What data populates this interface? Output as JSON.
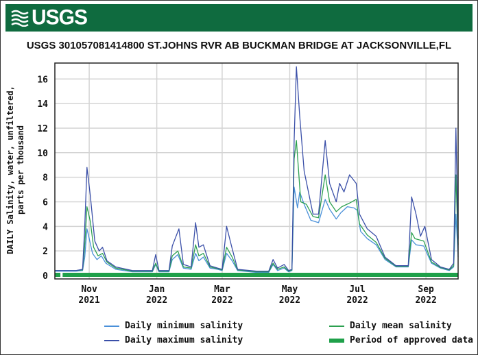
{
  "header": {
    "logo_text": "USGS",
    "banner_color": "#0f6b3f"
  },
  "chart_data": {
    "type": "line",
    "title": "USGS 301057081414800 ST.JOHNS RVR AB BUCKMAN BRIDGE AT JACKSONVILLE,FL",
    "ylabel_line1": "DAILY Salinity, water, unfiltered,",
    "ylabel_line2": "parts per thousand",
    "xlabel": "",
    "ylim": [
      0,
      17
    ],
    "yticks": [
      "0",
      "2",
      "4",
      "6",
      "8",
      "10",
      "12",
      "14",
      "16"
    ],
    "xticks": [
      {
        "month": "Nov",
        "year": "2021"
      },
      {
        "month": "Jan",
        "year": "2022"
      },
      {
        "month": "Mar",
        "year": "2022"
      },
      {
        "month": "May",
        "year": "2022"
      },
      {
        "month": "Jul",
        "year": "2022"
      },
      {
        "month": "Sep",
        "year": "2022"
      }
    ],
    "x_range": [
      "2021-10-01",
      "2022-09-30"
    ],
    "grid": true,
    "legend_position": "bottom",
    "series": [
      {
        "name": "Daily minimum salinity",
        "color": "#4a90d9",
        "points": [
          [
            "2021-10-01",
            0.35
          ],
          [
            "2021-10-20",
            0.35
          ],
          [
            "2021-10-26",
            0.4
          ],
          [
            "2021-10-28",
            1.5
          ],
          [
            "2021-10-30",
            3.8
          ],
          [
            "2021-11-01",
            3.0
          ],
          [
            "2021-11-04",
            1.8
          ],
          [
            "2021-11-08",
            1.3
          ],
          [
            "2021-11-12",
            1.6
          ],
          [
            "2021-11-16",
            1.0
          ],
          [
            "2021-11-25",
            0.5
          ],
          [
            "2021-12-10",
            0.3
          ],
          [
            "2021-12-28",
            0.3
          ],
          [
            "2021-12-31",
            0.9
          ],
          [
            "2022-01-03",
            0.3
          ],
          [
            "2022-01-12",
            0.3
          ],
          [
            "2022-01-15",
            1.3
          ],
          [
            "2022-01-20",
            1.7
          ],
          [
            "2022-01-25",
            0.6
          ],
          [
            "2022-02-01",
            0.5
          ],
          [
            "2022-02-05",
            1.8
          ],
          [
            "2022-02-08",
            1.2
          ],
          [
            "2022-02-12",
            1.5
          ],
          [
            "2022-02-18",
            0.6
          ],
          [
            "2022-02-25",
            0.5
          ],
          [
            "2022-03-01",
            0.4
          ],
          [
            "2022-03-05",
            1.8
          ],
          [
            "2022-03-10",
            1.2
          ],
          [
            "2022-03-15",
            0.4
          ],
          [
            "2022-04-01",
            0.25
          ],
          [
            "2022-04-12",
            0.25
          ],
          [
            "2022-04-16",
            0.9
          ],
          [
            "2022-04-20",
            0.4
          ],
          [
            "2022-04-26",
            0.6
          ],
          [
            "2022-04-30",
            0.3
          ],
          [
            "2022-05-03",
            0.4
          ],
          [
            "2022-05-05",
            7.2
          ],
          [
            "2022-05-08",
            5.5
          ],
          [
            "2022-05-10",
            6.8
          ],
          [
            "2022-05-14",
            5.8
          ],
          [
            "2022-05-20",
            4.5
          ],
          [
            "2022-05-27",
            4.3
          ],
          [
            "2022-06-02",
            6.2
          ],
          [
            "2022-06-06",
            5.4
          ],
          [
            "2022-06-12",
            4.6
          ],
          [
            "2022-06-16",
            5.1
          ],
          [
            "2022-06-22",
            5.6
          ],
          [
            "2022-06-28",
            5.5
          ],
          [
            "2022-07-01",
            5.3
          ],
          [
            "2022-07-04",
            3.6
          ],
          [
            "2022-07-10",
            3.0
          ],
          [
            "2022-07-18",
            2.5
          ],
          [
            "2022-07-26",
            1.3
          ],
          [
            "2022-08-05",
            0.7
          ],
          [
            "2022-08-16",
            0.7
          ],
          [
            "2022-08-19",
            2.9
          ],
          [
            "2022-08-23",
            2.5
          ],
          [
            "2022-08-30",
            2.4
          ],
          [
            "2022-09-06",
            1.0
          ],
          [
            "2022-09-14",
            0.6
          ],
          [
            "2022-09-22",
            0.4
          ],
          [
            "2022-09-26",
            0.7
          ],
          [
            "2022-09-28",
            5.0
          ],
          [
            "2022-09-30",
            1.5
          ]
        ]
      },
      {
        "name": "Daily mean salinity",
        "color": "#2ca050",
        "points": [
          [
            "2021-10-01",
            0.4
          ],
          [
            "2021-10-20",
            0.4
          ],
          [
            "2021-10-26",
            0.45
          ],
          [
            "2021-10-28",
            2.5
          ],
          [
            "2021-10-30",
            5.6
          ],
          [
            "2021-11-02",
            4.4
          ],
          [
            "2021-11-05",
            2.3
          ],
          [
            "2021-11-09",
            1.6
          ],
          [
            "2021-11-13",
            1.8
          ],
          [
            "2021-11-17",
            1.1
          ],
          [
            "2021-11-25",
            0.6
          ],
          [
            "2021-12-10",
            0.35
          ],
          [
            "2021-12-28",
            0.35
          ],
          [
            "2021-12-31",
            1.0
          ],
          [
            "2022-01-03",
            0.35
          ],
          [
            "2022-01-12",
            0.35
          ],
          [
            "2022-01-15",
            1.6
          ],
          [
            "2022-01-20",
            2.0
          ],
          [
            "2022-01-25",
            0.7
          ],
          [
            "2022-02-01",
            0.6
          ],
          [
            "2022-02-05",
            2.5
          ],
          [
            "2022-02-08",
            1.6
          ],
          [
            "2022-02-12",
            1.8
          ],
          [
            "2022-02-18",
            0.7
          ],
          [
            "2022-02-25",
            0.55
          ],
          [
            "2022-03-01",
            0.45
          ],
          [
            "2022-03-05",
            2.3
          ],
          [
            "2022-03-10",
            1.5
          ],
          [
            "2022-03-15",
            0.45
          ],
          [
            "2022-04-01",
            0.3
          ],
          [
            "2022-04-12",
            0.3
          ],
          [
            "2022-04-16",
            1.0
          ],
          [
            "2022-04-20",
            0.5
          ],
          [
            "2022-04-26",
            0.7
          ],
          [
            "2022-04-30",
            0.35
          ],
          [
            "2022-05-03",
            0.45
          ],
          [
            "2022-05-05",
            9.5
          ],
          [
            "2022-05-07",
            11.0
          ],
          [
            "2022-05-11",
            6.0
          ],
          [
            "2022-05-16",
            5.8
          ],
          [
            "2022-05-22",
            4.8
          ],
          [
            "2022-05-27",
            4.7
          ],
          [
            "2022-06-02",
            8.2
          ],
          [
            "2022-06-06",
            6.0
          ],
          [
            "2022-06-12",
            5.2
          ],
          [
            "2022-06-17",
            5.6
          ],
          [
            "2022-06-24",
            5.9
          ],
          [
            "2022-06-30",
            6.2
          ],
          [
            "2022-07-03",
            4.2
          ],
          [
            "2022-07-10",
            3.3
          ],
          [
            "2022-07-18",
            2.7
          ],
          [
            "2022-07-26",
            1.4
          ],
          [
            "2022-08-05",
            0.75
          ],
          [
            "2022-08-16",
            0.75
          ],
          [
            "2022-08-19",
            3.5
          ],
          [
            "2022-08-22",
            3.0
          ],
          [
            "2022-08-30",
            2.8
          ],
          [
            "2022-09-06",
            1.1
          ],
          [
            "2022-09-14",
            0.65
          ],
          [
            "2022-09-22",
            0.45
          ],
          [
            "2022-09-26",
            0.8
          ],
          [
            "2022-09-28",
            8.2
          ],
          [
            "2022-09-30",
            2.5
          ]
        ]
      },
      {
        "name": "Daily maximum salinity",
        "color": "#3a4fa8",
        "points": [
          [
            "2021-10-01",
            0.4
          ],
          [
            "2021-10-20",
            0.4
          ],
          [
            "2021-10-26",
            0.5
          ],
          [
            "2021-10-28",
            4.0
          ],
          [
            "2021-10-30",
            8.8
          ],
          [
            "2021-11-02",
            6.5
          ],
          [
            "2021-11-06",
            2.8
          ],
          [
            "2021-11-10",
            2.0
          ],
          [
            "2021-11-13",
            2.3
          ],
          [
            "2021-11-17",
            1.2
          ],
          [
            "2021-11-25",
            0.7
          ],
          [
            "2021-12-10",
            0.4
          ],
          [
            "2021-12-28",
            0.4
          ],
          [
            "2021-12-31",
            1.7
          ],
          [
            "2022-01-03",
            0.4
          ],
          [
            "2022-01-12",
            0.4
          ],
          [
            "2022-01-15",
            2.4
          ],
          [
            "2022-01-21",
            3.8
          ],
          [
            "2022-01-25",
            0.9
          ],
          [
            "2022-02-01",
            0.7
          ],
          [
            "2022-02-05",
            4.3
          ],
          [
            "2022-02-08",
            2.3
          ],
          [
            "2022-02-12",
            2.5
          ],
          [
            "2022-02-18",
            0.8
          ],
          [
            "2022-02-25",
            0.6
          ],
          [
            "2022-03-01",
            0.5
          ],
          [
            "2022-03-05",
            4.0
          ],
          [
            "2022-03-10",
            2.2
          ],
          [
            "2022-03-15",
            0.5
          ],
          [
            "2022-04-01",
            0.35
          ],
          [
            "2022-04-12",
            0.35
          ],
          [
            "2022-04-16",
            1.3
          ],
          [
            "2022-04-20",
            0.6
          ],
          [
            "2022-04-26",
            0.9
          ],
          [
            "2022-04-30",
            0.4
          ],
          [
            "2022-05-03",
            0.5
          ],
          [
            "2022-05-05",
            11.0
          ],
          [
            "2022-05-07",
            17.0
          ],
          [
            "2022-05-10",
            13.0
          ],
          [
            "2022-05-14",
            8.5
          ],
          [
            "2022-05-22",
            5.0
          ],
          [
            "2022-05-27",
            5.0
          ],
          [
            "2022-06-02",
            11.0
          ],
          [
            "2022-06-06",
            7.5
          ],
          [
            "2022-06-12",
            6.0
          ],
          [
            "2022-06-15",
            7.5
          ],
          [
            "2022-06-19",
            6.8
          ],
          [
            "2022-06-24",
            8.2
          ],
          [
            "2022-06-30",
            7.5
          ],
          [
            "2022-07-03",
            5.0
          ],
          [
            "2022-07-10",
            3.8
          ],
          [
            "2022-07-18",
            3.2
          ],
          [
            "2022-07-26",
            1.5
          ],
          [
            "2022-08-05",
            0.8
          ],
          [
            "2022-08-16",
            0.8
          ],
          [
            "2022-08-19",
            6.4
          ],
          [
            "2022-08-23",
            5.0
          ],
          [
            "2022-08-27",
            3.2
          ],
          [
            "2022-08-31",
            4.0
          ],
          [
            "2022-09-06",
            1.3
          ],
          [
            "2022-09-14",
            0.7
          ],
          [
            "2022-09-22",
            0.5
          ],
          [
            "2022-09-26",
            1.0
          ],
          [
            "2022-09-28",
            12.0
          ],
          [
            "2022-09-30",
            3.0
          ]
        ]
      },
      {
        "name": "Period of approved data",
        "color": "#1fa04a",
        "type": "bar-range",
        "ranges": [
          [
            "2021-10-01",
            "2021-10-06"
          ],
          [
            "2021-10-08",
            "2022-09-30"
          ]
        ]
      }
    ]
  },
  "legend": {
    "items": [
      {
        "label": "Daily minimum salinity",
        "color": "#4a90d9",
        "style": "line"
      },
      {
        "label": "Daily mean salinity",
        "color": "#2ca050",
        "style": "line"
      },
      {
        "label": "Daily maximum salinity",
        "color": "#3a4fa8",
        "style": "line"
      },
      {
        "label": "Period of approved data",
        "color": "#1fa04a",
        "style": "thick"
      }
    ]
  }
}
